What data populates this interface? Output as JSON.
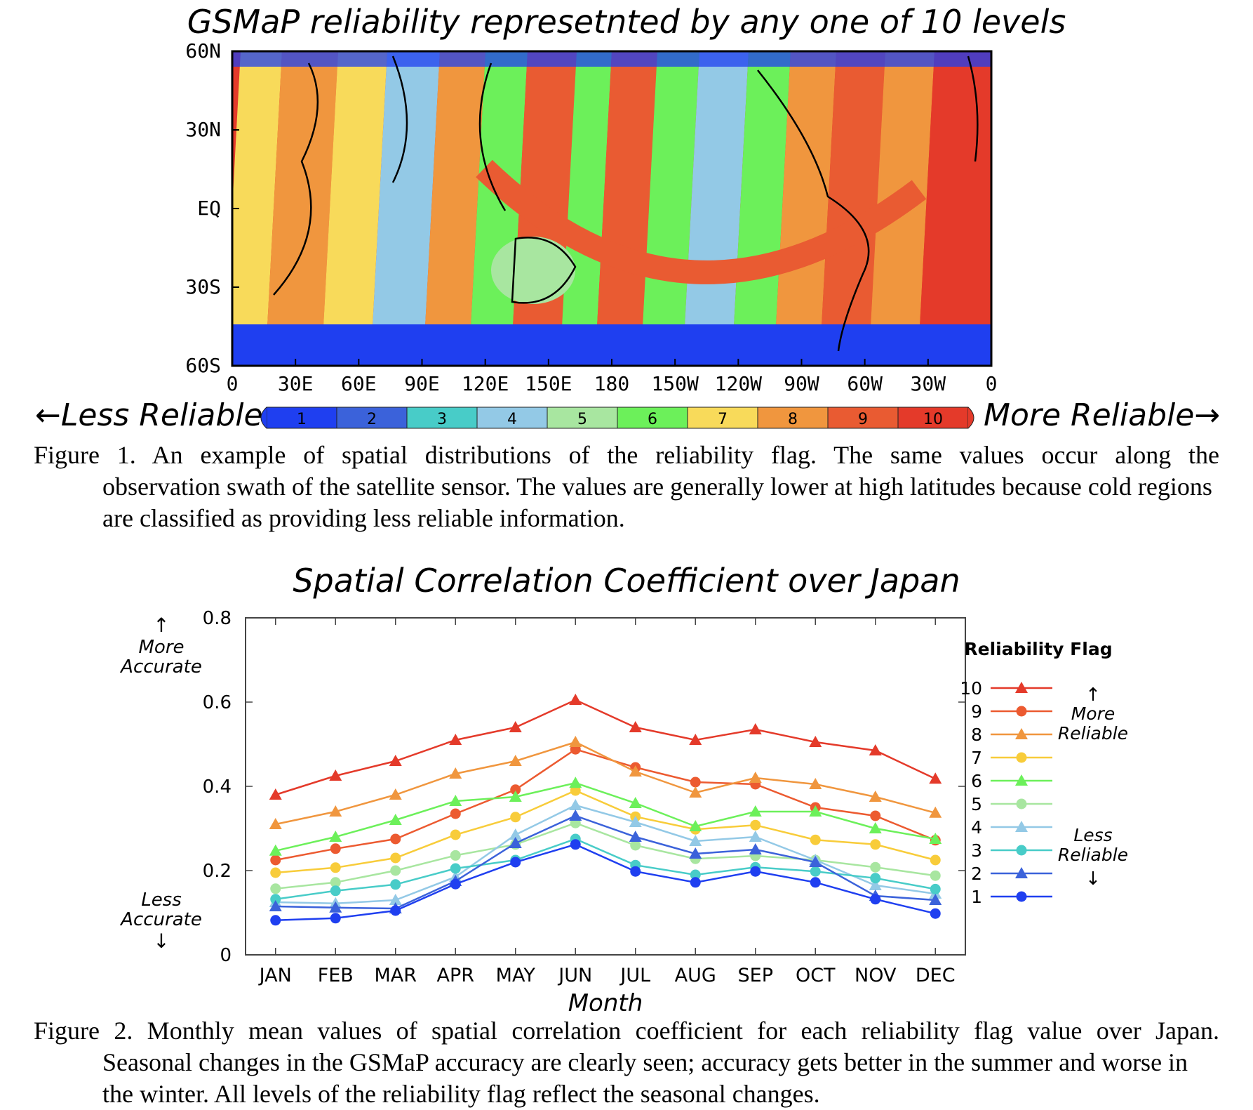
{
  "figure1": {
    "title": "GSMaP reliability represetnted by any one of 10 levels",
    "lat_labels": [
      "60N",
      "30N",
      "EQ",
      "30S",
      "60S"
    ],
    "lon_labels": [
      "0",
      "30E",
      "60E",
      "90E",
      "120E",
      "150E",
      "180",
      "150W",
      "120W",
      "90W",
      "60W",
      "30W",
      "0"
    ],
    "map_region_levels": [
      {
        "region": "southern-ocean-band",
        "level": 1
      },
      {
        "region": "arctic-band",
        "level": 1
      },
      {
        "region": "africa-swath",
        "level": 7
      },
      {
        "region": "indian-ocean-swath",
        "level": 8
      },
      {
        "region": "australia",
        "level": 5
      },
      {
        "region": "pacific-west-swath",
        "level": 9
      },
      {
        "region": "pacific-central-swath",
        "level": 6
      },
      {
        "region": "pacific-east-swath",
        "level": 4
      },
      {
        "region": "americas-swath",
        "level": 9
      },
      {
        "region": "atlantic-swath",
        "level": 10
      }
    ],
    "colorbar": {
      "left_label": "←Less Reliable",
      "right_label": "More Reliable→",
      "levels": [
        {
          "label": "1",
          "color": "#1f3ff0"
        },
        {
          "label": "2",
          "color": "#3b62da"
        },
        {
          "label": "3",
          "color": "#48ccc8"
        },
        {
          "label": "4",
          "color": "#93c9e6"
        },
        {
          "label": "5",
          "color": "#a8e6a0"
        },
        {
          "label": "6",
          "color": "#6cf05a"
        },
        {
          "label": "7",
          "color": "#f8da5a"
        },
        {
          "label": "8",
          "color": "#f0963e"
        },
        {
          "label": "9",
          "color": "#e95b32"
        },
        {
          "label": "10",
          "color": "#e43a2a"
        }
      ]
    },
    "caption_first": "Figure 1. An example of spatial distributions of the reliability flag. The same values occur along the",
    "caption_rest": "observation swath of the satellite sensor. The values are generally lower at high latitudes because cold regions are classified as providing less reliable information."
  },
  "chart_data": {
    "type": "line",
    "title": "Spatial Correlation Coefficient over Japan",
    "xlabel": "Month",
    "ylabel": "",
    "categories": [
      "JAN",
      "FEB",
      "MAR",
      "APR",
      "MAY",
      "JUN",
      "JUL",
      "AUG",
      "SEP",
      "OCT",
      "NOV",
      "DEC"
    ],
    "ylim": [
      0,
      0.8
    ],
    "yticks": [
      "0",
      "0.2",
      "0.4",
      "0.6",
      "0.8"
    ],
    "legend_title": "Reliability Flag",
    "legend_position": "right",
    "annotations": {
      "y_top": "More Accurate",
      "y_bottom": "Less Accurate",
      "legend_top": "More Reliable",
      "legend_bottom": "Less Reliable"
    },
    "series": [
      {
        "name": "10",
        "color": "#e43a2a",
        "marker": "triangle",
        "values": [
          0.38,
          0.425,
          0.46,
          0.51,
          0.54,
          0.605,
          0.54,
          0.51,
          0.535,
          0.505,
          0.485,
          0.418
        ]
      },
      {
        "name": "9",
        "color": "#ec5a30",
        "marker": "circle",
        "values": [
          0.225,
          0.252,
          0.275,
          0.335,
          0.392,
          0.488,
          0.445,
          0.41,
          0.405,
          0.35,
          0.33,
          0.272
        ]
      },
      {
        "name": "8",
        "color": "#f0963e",
        "marker": "triangle",
        "values": [
          0.31,
          0.34,
          0.38,
          0.43,
          0.46,
          0.505,
          0.435,
          0.385,
          0.42,
          0.405,
          0.375,
          0.337
        ]
      },
      {
        "name": "7",
        "color": "#f8cc3a",
        "marker": "circle",
        "values": [
          0.195,
          0.207,
          0.23,
          0.285,
          0.327,
          0.39,
          0.328,
          0.298,
          0.308,
          0.273,
          0.262,
          0.225
        ]
      },
      {
        "name": "6",
        "color": "#6cf05a",
        "marker": "triangle",
        "values": [
          0.247,
          0.28,
          0.32,
          0.365,
          0.375,
          0.408,
          0.36,
          0.305,
          0.34,
          0.34,
          0.3,
          0.275
        ]
      },
      {
        "name": "5",
        "color": "#a8e6a0",
        "marker": "circle",
        "values": [
          0.157,
          0.172,
          0.2,
          0.236,
          0.262,
          0.313,
          0.26,
          0.228,
          0.235,
          0.225,
          0.208,
          0.188
        ]
      },
      {
        "name": "4",
        "color": "#93c9e6",
        "marker": "triangle",
        "values": [
          0.125,
          0.122,
          0.13,
          0.185,
          0.285,
          0.355,
          0.315,
          0.27,
          0.28,
          0.225,
          0.165,
          0.145
        ]
      },
      {
        "name": "3",
        "color": "#48ccc8",
        "marker": "circle",
        "values": [
          0.132,
          0.152,
          0.167,
          0.205,
          0.225,
          0.275,
          0.213,
          0.19,
          0.208,
          0.198,
          0.182,
          0.156
        ]
      },
      {
        "name": "2",
        "color": "#3b62da",
        "marker": "triangle",
        "values": [
          0.115,
          0.112,
          0.11,
          0.175,
          0.265,
          0.33,
          0.28,
          0.24,
          0.25,
          0.22,
          0.14,
          0.13
        ]
      },
      {
        "name": "1",
        "color": "#1f3ff0",
        "marker": "circle",
        "values": [
          0.082,
          0.087,
          0.105,
          0.168,
          0.22,
          0.262,
          0.198,
          0.172,
          0.198,
          0.172,
          0.132,
          0.098
        ]
      }
    ]
  },
  "figure2": {
    "caption_first": "Figure 2. Monthly mean values of spatial correlation coefficient for each reliability flag value over Japan.",
    "caption_rest": "Seasonal changes in the GSMaP accuracy are clearly seen; accuracy gets better in the summer and worse in the winter. All levels of the reliability flag reflect the seasonal changes."
  }
}
